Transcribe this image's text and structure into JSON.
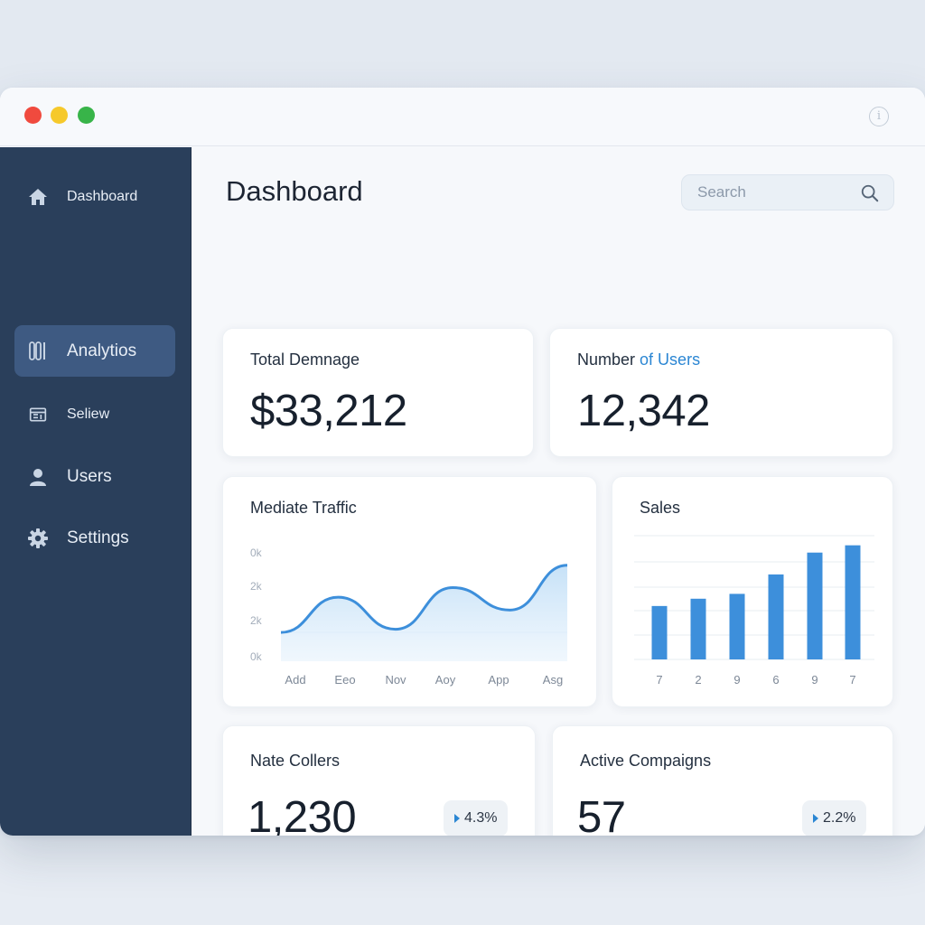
{
  "window": {
    "controls": [
      "close",
      "minimize",
      "maximize"
    ],
    "info_icon": "i"
  },
  "sidebar": {
    "items": [
      {
        "label": "Dashboard",
        "icon": "home-icon",
        "active": false
      },
      {
        "label": "Analytios",
        "icon": "analytics-icon",
        "active": true
      },
      {
        "label": "Seliew",
        "icon": "report-icon",
        "active": false
      },
      {
        "label": "Users",
        "icon": "user-icon",
        "active": false
      },
      {
        "label": "Settings",
        "icon": "gear-icon",
        "active": false
      }
    ]
  },
  "header": {
    "title": "Dashboard",
    "search_placeholder": "Search"
  },
  "cards": {
    "total": {
      "title": "Total Demnage",
      "value": "$33,212"
    },
    "users": {
      "title_prefix": "Number",
      "title_accent": "of Users",
      "value": "12,342"
    },
    "nate": {
      "title": "Nate Collers",
      "value": "1,230",
      "change": "4.3%"
    },
    "campaigns": {
      "title": "Active Compaigns",
      "value": "57",
      "change": "2.2%"
    }
  },
  "colors": {
    "sidebar": "#2a3f5b",
    "active_item": "#3e5a82",
    "accent": "#2b86d3",
    "bar": "#3d8fdb"
  },
  "chart_data": [
    {
      "type": "area",
      "title": "Mediate Traffic",
      "categories": [
        "Add",
        "Eeo",
        "Nov",
        "Aoy",
        "App",
        "Asg"
      ],
      "y_tick_labels": [
        "0k",
        "2k",
        "2k",
        "0k"
      ],
      "values": [
        0.9,
        2.0,
        1.0,
        2.3,
        1.6,
        3.0
      ],
      "ylim": [
        0,
        3.5
      ],
      "grid": true
    },
    {
      "type": "bar",
      "title": "Sales",
      "categories": [
        "7",
        "2",
        "9",
        "6",
        "9",
        "7"
      ],
      "values": [
        2.2,
        2.5,
        2.7,
        3.5,
        4.4,
        4.7
      ],
      "ylim": [
        0,
        5.5
      ],
      "grid": true
    }
  ]
}
